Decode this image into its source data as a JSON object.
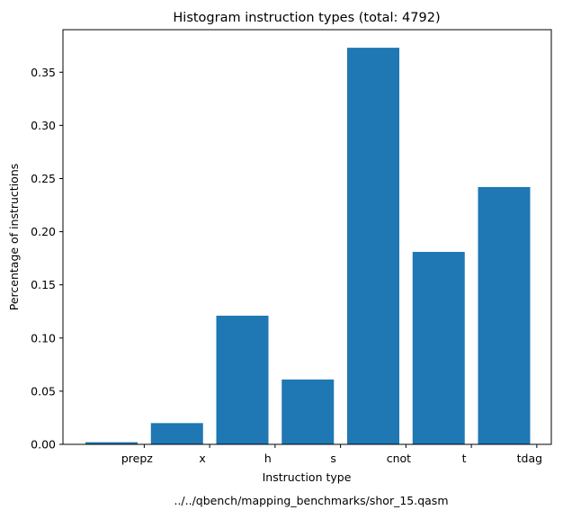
{
  "chart_data": {
    "type": "bar",
    "title": "Histogram instruction types (total: 4792)",
    "xlabel": "Instruction type",
    "ylabel": "Percentage of instructions",
    "caption": "../../qbench/mapping_benchmarks/shor_15.qasm",
    "categories": [
      "prepz",
      "x",
      "h",
      "s",
      "cnot",
      "t",
      "tdag"
    ],
    "values": [
      0.002,
      0.02,
      0.121,
      0.061,
      0.373,
      0.181,
      0.242
    ],
    "ylim": [
      0,
      0.39
    ],
    "yticks": [
      0.0,
      0.05,
      0.1,
      0.15,
      0.2,
      0.25,
      0.3,
      0.35
    ],
    "ytick_labels": [
      "0.00",
      "0.05",
      "0.10",
      "0.15",
      "0.20",
      "0.25",
      "0.30",
      "0.35"
    ],
    "bar_color": "#1f77b4",
    "grid": false,
    "legend": "none"
  }
}
